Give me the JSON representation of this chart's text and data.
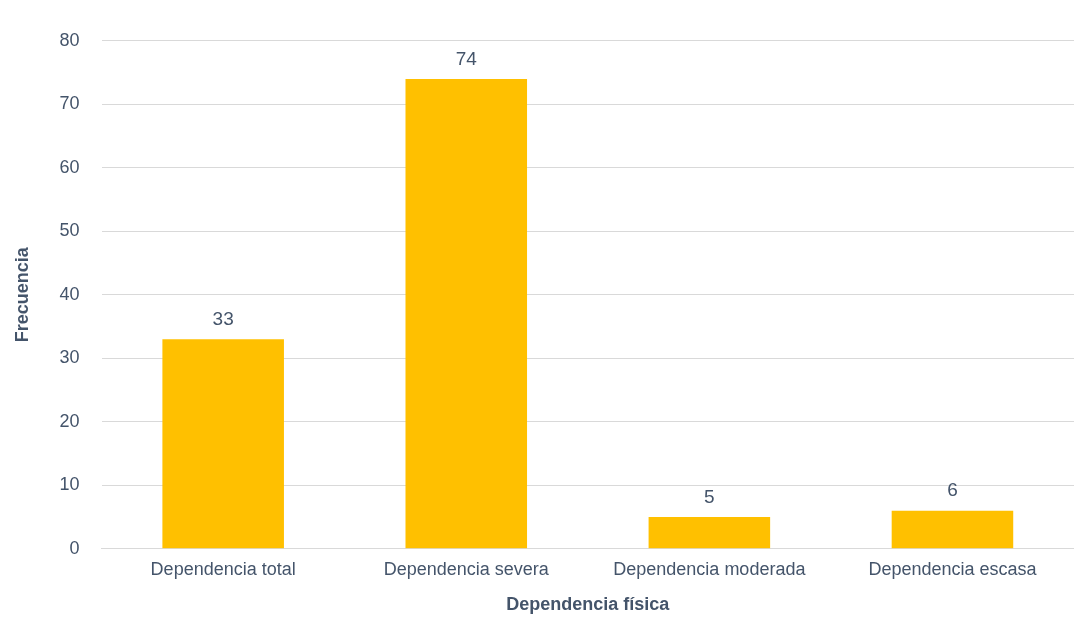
{
  "chart_data": {
    "type": "bar",
    "xlabel": "Dependencia física",
    "ylabel": "Frecuencia",
    "categories": [
      "Dependencia total",
      "Dependencia severa",
      "Dependencia moderada",
      "Dependencia escasa"
    ],
    "values": [
      33,
      74,
      5,
      6
    ],
    "color": "#ffc000",
    "ylim": [
      0,
      80
    ],
    "yticks": [
      0,
      10,
      20,
      30,
      40,
      50,
      60,
      70,
      80
    ],
    "grid": "y",
    "data_labels": true,
    "legend": false
  }
}
